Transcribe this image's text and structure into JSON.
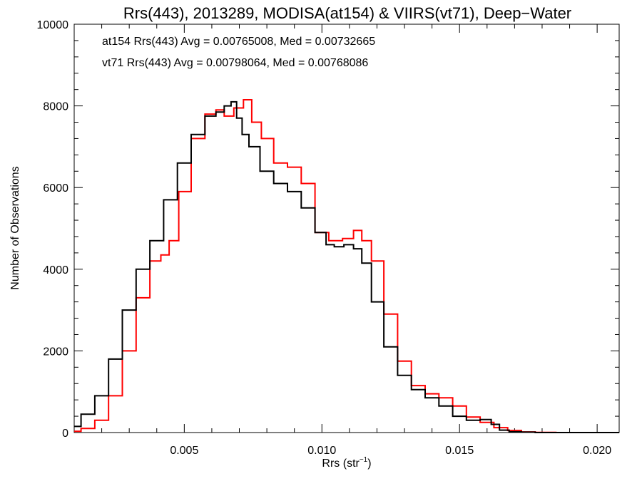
{
  "chart_data": {
    "type": "line",
    "title": "Rrs(443), 2013289, MODISA(at154) & VIIRS(vt71), Deep−Water",
    "xlabel": "Rrs (str",
    "xlabel_sup": "−1",
    "xlabel_tail": ")",
    "ylabel": "Number of Observations",
    "xlim": [
      0.001,
      0.0208
    ],
    "ylim": [
      0,
      10000
    ],
    "xticks": [
      0.005,
      0.01,
      0.015,
      0.02
    ],
    "xtick_labels": [
      "0.005",
      "0.010",
      "0.015",
      "0.020"
    ],
    "yticks": [
      0,
      2000,
      4000,
      6000,
      8000,
      10000
    ],
    "ytick_labels": [
      "0",
      "2000",
      "4000",
      "6000",
      "8000",
      "10000"
    ],
    "grid": false,
    "annotations": [
      {
        "text": "at154 Rrs(443) Avg = 0.00765008, Med = 0.00732665",
        "color": "#000000"
      },
      {
        "text": "vt71 Rrs(443) Avg = 0.00798064, Med = 0.00768086",
        "color": "#ff0000"
      }
    ],
    "series": [
      {
        "color": "#000000",
        "x": [
          0.001,
          0.0015,
          0.002,
          0.0025,
          0.003,
          0.0035,
          0.004,
          0.0045,
          0.005,
          0.0055,
          0.006,
          0.0063,
          0.0066,
          0.0068,
          0.007,
          0.0072,
          0.0075,
          0.008,
          0.0085,
          0.009,
          0.0095,
          0.01,
          0.0103,
          0.0106,
          0.011,
          0.0113,
          0.0116,
          0.012,
          0.0125,
          0.013,
          0.0135,
          0.014,
          0.0145,
          0.015,
          0.0155,
          0.016,
          0.0163,
          0.0166,
          0.017,
          0.0175,
          0.018,
          0.019,
          0.02,
          0.0208
        ],
        "values": [
          150,
          450,
          900,
          1800,
          3000,
          4000,
          4700,
          5700,
          6600,
          7300,
          7750,
          7850,
          8000,
          8100,
          7700,
          7300,
          7000,
          6400,
          6100,
          5900,
          5500,
          4900,
          4600,
          4550,
          4600,
          4500,
          4150,
          3200,
          2100,
          1400,
          1050,
          850,
          650,
          400,
          300,
          320,
          200,
          60,
          20,
          10,
          0,
          0,
          0,
          0
        ]
      },
      {
        "color": "#ff0000",
        "x": [
          0.001,
          0.0015,
          0.002,
          0.0025,
          0.003,
          0.0035,
          0.004,
          0.0043,
          0.0046,
          0.005,
          0.0055,
          0.006,
          0.0063,
          0.0066,
          0.007,
          0.0073,
          0.0076,
          0.008,
          0.0085,
          0.009,
          0.0095,
          0.01,
          0.0105,
          0.011,
          0.0113,
          0.0116,
          0.012,
          0.0125,
          0.013,
          0.0135,
          0.014,
          0.0145,
          0.015,
          0.0155,
          0.016,
          0.0165,
          0.017,
          0.0175,
          0.018,
          0.019,
          0.02,
          0.0208
        ],
        "values": [
          30,
          100,
          300,
          900,
          2000,
          3300,
          4200,
          4350,
          4700,
          5900,
          7200,
          7800,
          7900,
          7750,
          7950,
          8150,
          7600,
          7200,
          6600,
          6500,
          6100,
          4900,
          4700,
          4750,
          4950,
          4700,
          4200,
          2900,
          1750,
          1150,
          950,
          850,
          650,
          380,
          250,
          120,
          50,
          15,
          5,
          0,
          0,
          0
        ]
      }
    ]
  }
}
